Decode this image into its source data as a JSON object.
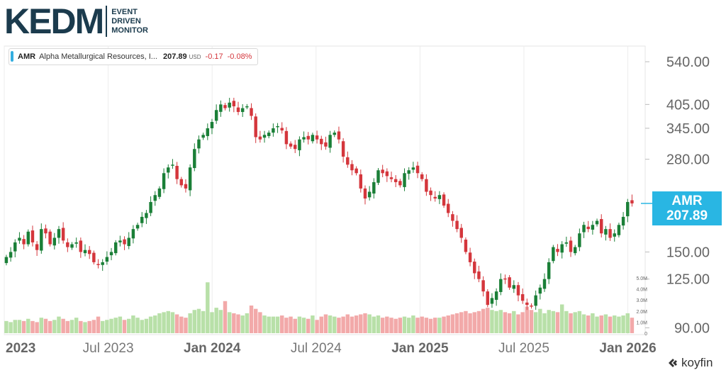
{
  "logo": {
    "main": "KEDM",
    "sub": [
      "EVENT",
      "DRIVEN",
      "MONITOR"
    ]
  },
  "legend": {
    "ticker": "AMR",
    "name": "Alpha Metallurgical Resources, I...",
    "price": "207.89",
    "currency": "USD",
    "change": "-0.17",
    "change_pct": "-0.08%"
  },
  "price_tag": {
    "ticker": "AMR",
    "price": "207.89"
  },
  "footer": {
    "brand": "koyfin"
  },
  "colors": {
    "up": "#1a7f37",
    "down": "#d4363c",
    "vol_up": "#b8e0a8",
    "vol_down": "#f2a9a9",
    "accent": "#29b6e3"
  },
  "chart_data": {
    "type": "candlestick",
    "y_scale": "log",
    "ylim": [
      86,
      600
    ],
    "y_ticks": [
      540,
      405,
      345,
      280,
      150,
      125,
      90
    ],
    "y_tick_labels": [
      "540.00",
      "405.00",
      "345.00",
      "280.00",
      "150.00",
      "125.00",
      "90.00"
    ],
    "x_tick_labels": [
      "2023",
      "Jul 2023",
      "Jan 2024",
      "Jul 2024",
      "Jan 2025",
      "Jul 2025",
      "Jan 2026"
    ],
    "x_tick_dates": [
      "2023-01",
      "2023-07",
      "2024-01",
      "2024-07",
      "2025-01",
      "2025-07",
      "2026-01"
    ],
    "x_range": [
      "2023-01",
      "2026-02"
    ],
    "volume_axis_labels": [
      "5.0M",
      "4.0M",
      "3.0M",
      "2.0M",
      "1.0M",
      "0"
    ],
    "volume_axis_values": [
      5.0,
      4.0,
      3.0,
      2.0,
      1.0,
      0
    ],
    "grid": "vertical",
    "weekly_close": [
      145,
      150,
      160,
      165,
      158,
      172,
      160,
      152,
      175,
      170,
      158,
      165,
      175,
      162,
      155,
      158,
      160,
      150,
      152,
      148,
      140,
      138,
      140,
      145,
      150,
      160,
      162,
      158,
      165,
      175,
      180,
      190,
      195,
      210,
      220,
      230,
      255,
      265,
      270,
      245,
      235,
      230,
      265,
      300,
      320,
      330,
      345,
      360,
      390,
      405,
      395,
      410,
      400,
      385,
      395,
      400,
      375,
      325,
      320,
      330,
      335,
      345,
      350,
      340,
      310,
      305,
      300,
      320,
      325,
      320,
      330,
      320,
      310,
      305,
      330,
      335,
      320,
      285,
      270,
      260,
      255,
      230,
      215,
      225,
      240,
      260,
      255,
      250,
      245,
      240,
      235,
      255,
      260,
      265,
      255,
      245,
      225,
      220,
      215,
      220,
      205,
      195,
      185,
      175,
      165,
      150,
      140,
      130,
      125,
      115,
      105,
      110,
      115,
      125,
      125,
      118,
      120,
      112,
      108,
      105,
      104,
      112,
      118,
      125,
      140,
      155,
      150,
      158,
      160,
      150,
      155,
      170,
      180,
      175,
      180,
      185,
      170,
      175,
      165,
      170,
      180,
      190,
      210,
      208
    ],
    "weekly_volume_M": [
      1.1,
      1.0,
      1.2,
      1.2,
      1.1,
      1.3,
      1.1,
      1.0,
      1.4,
      1.3,
      1.1,
      1.2,
      1.5,
      1.3,
      1.1,
      1.2,
      1.4,
      1.1,
      1.0,
      1.1,
      1.2,
      1.5,
      1.1,
      1.2,
      1.3,
      1.4,
      1.5,
      1.2,
      1.3,
      1.6,
      1.4,
      1.2,
      1.3,
      1.5,
      1.6,
      1.8,
      1.9,
      2.0,
      1.9,
      1.7,
      1.5,
      1.4,
      1.8,
      2.1,
      2.2,
      2.0,
      4.6,
      1.9,
      2.3,
      2.1,
      2.9,
      1.9,
      1.8,
      1.7,
      1.6,
      1.8,
      2.5,
      2.2,
      1.9,
      1.6,
      1.5,
      1.5,
      1.5,
      1.6,
      1.4,
      1.5,
      1.3,
      1.5,
      1.4,
      1.3,
      1.6,
      1.2,
      1.5,
      1.7,
      1.6,
      1.5,
      1.4,
      1.5,
      1.7,
      1.5,
      1.6,
      1.7,
      1.8,
      1.7,
      1.5,
      1.6,
      1.4,
      1.5,
      1.4,
      1.3,
      1.4,
      1.5,
      1.4,
      1.6,
      1.4,
      1.5,
      1.4,
      1.3,
      1.4,
      1.4,
      1.5,
      1.6,
      1.7,
      1.8,
      1.9,
      2.0,
      1.8,
      1.9,
      2.0,
      2.2,
      2.3,
      2.1,
      2.0,
      2.1,
      1.9,
      1.8,
      2.0,
      1.7,
      1.9,
      2.4,
      2.1,
      1.9,
      2.2,
      1.8,
      2.1,
      2.0,
      1.9,
      2.6,
      2.0,
      1.8,
      1.9,
      2.0,
      1.7,
      1.6,
      1.8,
      1.5,
      1.6,
      1.7,
      1.5,
      1.6,
      1.5,
      1.6,
      1.8,
      1.4
    ]
  }
}
